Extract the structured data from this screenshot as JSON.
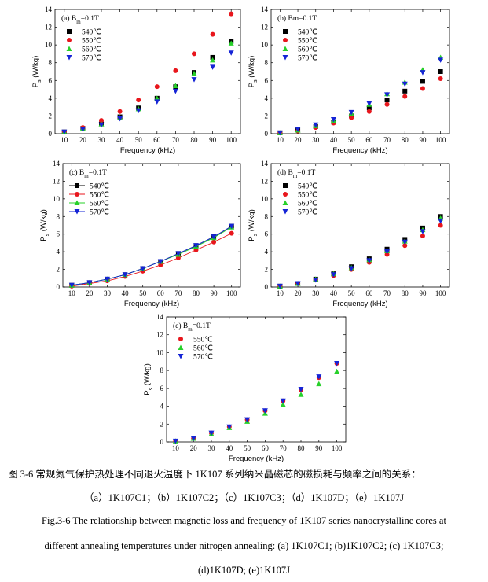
{
  "caption": {
    "zh_line1": "图 3-6  常规氮气保护热处理不同退火温度下 1K107 系列纳米晶磁芯的磁损耗与频率之间的关系：",
    "zh_line2": "（a）1K107C1；（b）1K107C2；（c）1K107C3；（d）1K107D；（e）1K107J",
    "en_line1": "Fig.3-6 The relationship between magnetic loss and frequency of 1K107 series nanocrystalline cores at",
    "en_line2": "different annealing temperatures under nitrogen annealing: (a) 1K107C1; (b)1K107C2; (c) 1K107C3;",
    "en_line3": "(d)1K107D; (e)1K107J"
  },
  "style": {
    "colors": {
      "540℃": "#000000",
      "550℃": "#e8161c",
      "560℃": "#27d02a",
      "570℃": "#1524d6"
    },
    "markers": {
      "540℃": "square",
      "550℃": "circle",
      "560℃": "triangle-up",
      "570℃": "triangle-down"
    }
  },
  "chart_data": [
    {
      "type": "scatter",
      "panel": "(a)",
      "bm_label": "B",
      "bm_sub": "m",
      "bm_value": "=0.1T",
      "xlabel": "Frequency (kHz)",
      "ylabel": "P",
      "ylabel_sub": "s",
      "ylabel_unit": " (W/kg)",
      "xlim": [
        5,
        105
      ],
      "ylim": [
        0,
        14
      ],
      "lines": false,
      "legend": "top-left",
      "x": [
        10,
        20,
        30,
        40,
        50,
        60,
        70,
        80,
        90,
        100
      ],
      "series": [
        {
          "name": "540℃",
          "values": [
            0.2,
            0.6,
            1.1,
            1.9,
            2.9,
            4.0,
            5.3,
            6.9,
            8.6,
            10.4
          ]
        },
        {
          "name": "550℃",
          "values": [
            0.2,
            0.7,
            1.5,
            2.5,
            3.8,
            5.3,
            7.1,
            9.0,
            11.2,
            13.5
          ]
        },
        {
          "name": "560℃",
          "values": [
            0.2,
            0.6,
            1.1,
            1.8,
            2.8,
            4.0,
            5.4,
            6.8,
            8.3,
            10.2
          ]
        },
        {
          "name": "570℃",
          "values": [
            0.2,
            0.5,
            1.0,
            1.7,
            2.6,
            3.6,
            4.8,
            6.1,
            7.5,
            9.1
          ]
        }
      ]
    },
    {
      "type": "scatter",
      "panel": "(b)",
      "bm_label": "Bm",
      "bm_sub": "",
      "bm_value": "=0.1T",
      "xlabel": "Frequency (kHz)",
      "ylabel": "P",
      "ylabel_sub": "s",
      "ylabel_unit": " (W/kg)",
      "xlim": [
        5,
        105
      ],
      "ylim": [
        0,
        14
      ],
      "lines": false,
      "legend": "top-left",
      "x": [
        10,
        20,
        30,
        40,
        50,
        60,
        70,
        80,
        90,
        100
      ],
      "series": [
        {
          "name": "540℃",
          "values": [
            0.1,
            0.4,
            0.8,
            1.3,
            2.0,
            2.9,
            3.8,
            4.8,
            5.9,
            7.0
          ]
        },
        {
          "name": "550℃",
          "values": [
            0.1,
            0.3,
            0.7,
            1.2,
            1.8,
            2.5,
            3.3,
            4.2,
            5.1,
            6.2
          ]
        },
        {
          "name": "560℃",
          "values": [
            0.1,
            0.4,
            0.9,
            1.5,
            2.3,
            3.3,
            4.5,
            5.8,
            7.2,
            8.6
          ]
        },
        {
          "name": "570℃",
          "values": [
            0.1,
            0.5,
            1.0,
            1.6,
            2.4,
            3.4,
            4.4,
            5.6,
            6.9,
            8.3
          ]
        }
      ]
    },
    {
      "type": "line",
      "panel": "(c)",
      "bm_label": "B",
      "bm_sub": "m",
      "bm_value": "=0.1T",
      "xlabel": "Frequency (kHz)",
      "ylabel": "P",
      "ylabel_sub": "s",
      "ylabel_unit": " (W/kg)",
      "xlim": [
        5,
        105
      ],
      "ylim": [
        0,
        14
      ],
      "lines": true,
      "legend": "top-left",
      "x": [
        10,
        20,
        30,
        40,
        50,
        60,
        70,
        80,
        90,
        100
      ],
      "series": [
        {
          "name": "540℃",
          "values": [
            0.2,
            0.5,
            0.9,
            1.4,
            2.1,
            2.9,
            3.8,
            4.7,
            5.7,
            6.9
          ]
        },
        {
          "name": "550℃",
          "values": [
            0.1,
            0.4,
            0.7,
            1.2,
            1.8,
            2.5,
            3.3,
            4.2,
            5.1,
            6.1
          ]
        },
        {
          "name": "560℃",
          "values": [
            0.2,
            0.5,
            0.9,
            1.4,
            2.1,
            2.9,
            3.7,
            4.6,
            5.6,
            6.8
          ]
        },
        {
          "name": "570℃",
          "values": [
            0.2,
            0.5,
            0.9,
            1.4,
            2.1,
            2.9,
            3.8,
            4.7,
            5.7,
            6.9
          ]
        }
      ]
    },
    {
      "type": "scatter",
      "panel": "(d)",
      "bm_label": "B",
      "bm_sub": "m",
      "bm_value": "=0.1T",
      "xlabel": "Frequency (kHz)",
      "ylabel": "P",
      "ylabel_sub": "s",
      "ylabel_unit": " (W/kg)",
      "xlim": [
        5,
        105
      ],
      "ylim": [
        0,
        14
      ],
      "lines": false,
      "legend": "top-left",
      "x": [
        10,
        20,
        30,
        40,
        50,
        60,
        70,
        80,
        90,
        100
      ],
      "series": [
        {
          "name": "540℃",
          "values": [
            0.1,
            0.4,
            0.9,
            1.5,
            2.3,
            3.2,
            4.3,
            5.4,
            6.7,
            8.0
          ]
        },
        {
          "name": "550℃",
          "values": [
            0.1,
            0.4,
            0.8,
            1.3,
            2.0,
            2.8,
            3.7,
            4.7,
            5.8,
            7.0
          ]
        },
        {
          "name": "560℃",
          "values": [
            0.1,
            0.4,
            0.9,
            1.5,
            2.2,
            3.1,
            4.1,
            5.2,
            6.5,
            7.8
          ]
        },
        {
          "name": "570℃",
          "values": [
            0.1,
            0.4,
            0.8,
            1.4,
            2.1,
            3.0,
            4.0,
            5.1,
            6.3,
            7.5
          ]
        }
      ]
    },
    {
      "type": "scatter",
      "panel": "(e)",
      "bm_label": "B",
      "bm_sub": "m",
      "bm_value": "=0.1T",
      "xlabel": "Frequency (kHz)",
      "ylabel": "P",
      "ylabel_sub": "s",
      "ylabel_unit": " (W/kg)",
      "xlim": [
        5,
        105
      ],
      "ylim": [
        0,
        14
      ],
      "lines": false,
      "legend": "top-left",
      "x": [
        10,
        20,
        30,
        40,
        50,
        60,
        70,
        80,
        90,
        100
      ],
      "series": [
        {
          "name": "550℃",
          "values": [
            0.1,
            0.4,
            1.0,
            1.7,
            2.5,
            3.5,
            4.6,
            5.8,
            7.2,
            8.8
          ]
        },
        {
          "name": "560℃",
          "values": [
            0.1,
            0.4,
            0.9,
            1.6,
            2.3,
            3.2,
            4.2,
            5.3,
            6.5,
            7.9
          ]
        },
        {
          "name": "570℃",
          "values": [
            0.1,
            0.4,
            1.0,
            1.7,
            2.5,
            3.5,
            4.6,
            5.9,
            7.3,
            8.8
          ]
        }
      ]
    }
  ]
}
